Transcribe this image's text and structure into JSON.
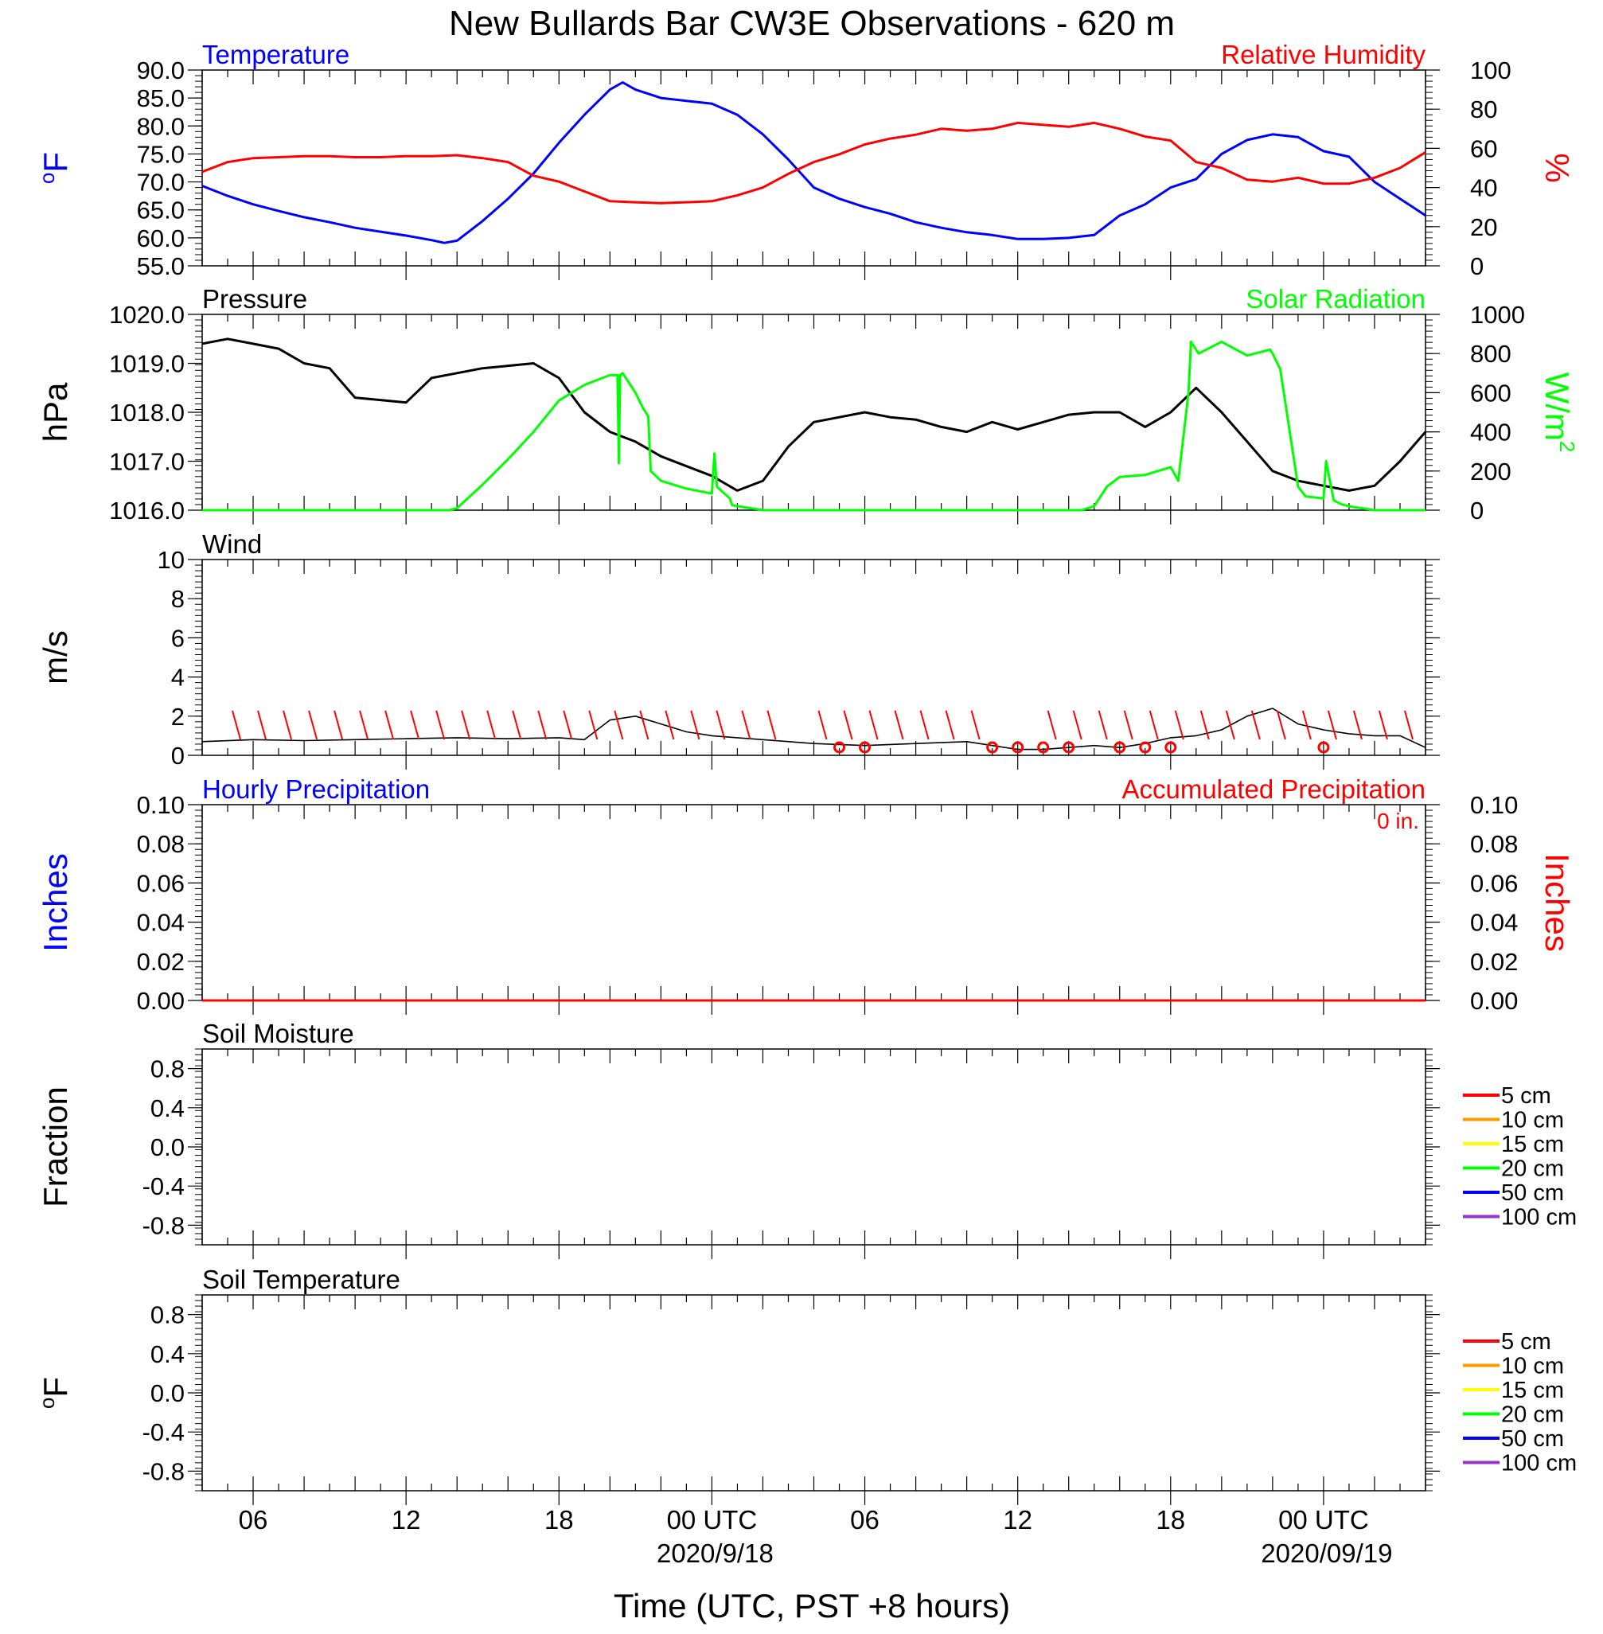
{
  "title": "New Bullards Bar CW3E Observations - 620 m",
  "x_axis": {
    "label": "Time (UTC, PST +8 hours)",
    "start_hour": 4,
    "end_hour": 52,
    "tick_labels": [
      {
        "hour": 6,
        "text": "06",
        "date": ""
      },
      {
        "hour": 12,
        "text": "12",
        "date": ""
      },
      {
        "hour": 18,
        "text": "18",
        "date": ""
      },
      {
        "hour": 24,
        "text": "00 UTC",
        "date": "2020/9/18"
      },
      {
        "hour": 30,
        "text": "06",
        "date": ""
      },
      {
        "hour": 36,
        "text": "12",
        "date": ""
      },
      {
        "hour": 42,
        "text": "18",
        "date": ""
      },
      {
        "hour": 48,
        "text": "00 UTC",
        "date": "2020/09/19"
      }
    ]
  },
  "colors": {
    "blue": "#0000ff",
    "red": "#ff0000",
    "green": "#00ff00",
    "black": "#000000",
    "orange": "#ff9900",
    "yellow": "#ffff00",
    "purple": "#9933cc"
  },
  "legend_soil": [
    {
      "label": "5 cm",
      "color": "#ff0000"
    },
    {
      "label": "10 cm",
      "color": "#ff9900"
    },
    {
      "label": "15 cm",
      "color": "#ffff00"
    },
    {
      "label": "20 cm",
      "color": "#00ff00"
    },
    {
      "label": "50 cm",
      "color": "#0000ff"
    },
    {
      "label": "100 cm",
      "color": "#9933cc"
    }
  ],
  "chart_data": [
    {
      "type": "line",
      "panel": "temperature_humidity",
      "left_title": "Temperature",
      "right_title": "Relative Humidity",
      "ylabel_left_sup": "o",
      "ylabel_left": "F",
      "ylabel_right": "%",
      "ylim_left": [
        55,
        90
      ],
      "yticks_left": [
        "55.0",
        "60.0",
        "65.0",
        "70.0",
        "75.0",
        "80.0",
        "85.0",
        "90.0"
      ],
      "ylim_right": [
        0,
        100
      ],
      "yticks_right": [
        "0",
        "20",
        "40",
        "60",
        "80",
        "100"
      ],
      "series": [
        {
          "name": "Temperature",
          "axis": "left",
          "color": "#0000ff",
          "x": [
            4,
            5,
            6,
            7,
            8,
            9,
            10,
            11,
            12,
            13,
            13.5,
            14,
            15,
            16,
            17,
            18,
            19,
            20,
            20.5,
            21,
            22,
            23,
            24,
            25,
            26,
            27,
            28,
            29,
            30,
            31,
            32,
            33,
            34,
            35,
            36,
            37,
            38,
            39,
            40,
            41,
            42,
            43,
            44,
            45,
            46,
            47,
            48,
            49,
            50,
            51,
            52
          ],
          "y": [
            69.3,
            67.5,
            66.0,
            64.8,
            63.7,
            62.8,
            61.8,
            61.1,
            60.4,
            59.6,
            59.1,
            59.5,
            63.0,
            67.0,
            71.5,
            77.0,
            82.0,
            86.5,
            87.8,
            86.5,
            85.0,
            84.5,
            84.0,
            82.0,
            78.5,
            74.0,
            69.0,
            67.0,
            65.5,
            64.3,
            62.8,
            61.8,
            61.0,
            60.5,
            59.8,
            59.8,
            60.0,
            60.5,
            64.0,
            66.0,
            69.0,
            70.5,
            75.0,
            77.5,
            78.5,
            78.0,
            75.5,
            74.5,
            70.0,
            67.0,
            64.0
          ]
        },
        {
          "name": "Relative Humidity",
          "axis": "right",
          "color": "#ff0000",
          "x": [
            4,
            5,
            6,
            7,
            8,
            9,
            10,
            11,
            12,
            13,
            14,
            15,
            16,
            17,
            18,
            19,
            20,
            21,
            22,
            23,
            24,
            25,
            26,
            27,
            28,
            29,
            30,
            31,
            32,
            33,
            34,
            35,
            36,
            37,
            38,
            39,
            40,
            41,
            42,
            43,
            44,
            45,
            46,
            47,
            48,
            49,
            50,
            51,
            52
          ],
          "y": [
            48,
            53,
            55,
            55.5,
            56,
            56,
            55.5,
            55.5,
            56,
            56,
            56.5,
            55,
            53,
            46,
            43,
            38,
            33,
            32.5,
            32,
            32.5,
            33,
            36,
            40,
            47,
            53,
            57,
            62,
            65,
            67,
            70,
            69,
            70,
            73,
            72,
            71,
            73,
            70,
            66,
            64,
            53,
            50,
            44,
            43,
            45,
            42,
            42,
            45,
            50,
            58
          ]
        }
      ]
    },
    {
      "type": "line",
      "panel": "pressure_solar",
      "left_title": "Pressure",
      "right_title": "Solar Radiation",
      "ylabel_left": "hPa",
      "ylabel_right": "W/m",
      "ylabel_right_sup": "2",
      "ylim_left": [
        1016,
        1020
      ],
      "yticks_left": [
        "1016.0",
        "1017.0",
        "1018.0",
        "1019.0",
        "1020.0"
      ],
      "ylim_right": [
        0,
        1000
      ],
      "yticks_right": [
        "0",
        "200",
        "400",
        "600",
        "800",
        "1000"
      ],
      "series": [
        {
          "name": "Pressure",
          "axis": "left",
          "color": "#000000",
          "x": [
            4,
            5,
            6,
            7,
            8,
            9,
            10,
            11,
            12,
            13,
            14,
            15,
            16,
            17,
            18,
            19,
            20,
            21,
            22,
            23,
            24,
            25,
            26,
            27,
            28,
            29,
            30,
            31,
            32,
            33,
            34,
            35,
            36,
            37,
            38,
            39,
            40,
            41,
            42,
            43,
            44,
            45,
            46,
            47,
            48,
            49,
            50,
            51,
            52
          ],
          "y": [
            1019.4,
            1019.5,
            1019.4,
            1019.3,
            1019.0,
            1018.9,
            1018.3,
            1018.25,
            1018.2,
            1018.7,
            1018.8,
            1018.9,
            1018.95,
            1019.0,
            1018.7,
            1018.0,
            1017.6,
            1017.4,
            1017.1,
            1016.9,
            1016.7,
            1016.4,
            1016.6,
            1017.3,
            1017.8,
            1017.9,
            1018.0,
            1017.9,
            1017.85,
            1017.7,
            1017.6,
            1017.8,
            1017.65,
            1017.8,
            1017.95,
            1018.0,
            1018.0,
            1017.7,
            1018.0,
            1018.5,
            1018.0,
            1017.4,
            1016.8,
            1016.6,
            1016.5,
            1016.4,
            1016.5,
            1017.0,
            1017.6
          ]
        },
        {
          "name": "Solar Radiation",
          "axis": "right",
          "color": "#00ff00",
          "x": [
            4,
            13.7,
            14,
            15,
            16,
            17,
            18,
            19,
            20,
            20.3,
            20.35,
            20.4,
            20.5,
            21,
            21.3,
            21.5,
            21.6,
            22,
            23,
            24,
            24.1,
            24.2,
            24.7,
            24.8,
            26,
            27,
            30,
            36,
            38.5,
            39,
            39.5,
            40,
            41,
            42,
            42.3,
            42.7,
            42.8,
            43.1,
            44,
            45,
            45.9,
            46,
            46.3,
            47,
            47.3,
            48,
            48.1,
            48.4,
            48.7,
            49,
            50,
            51,
            52
          ],
          "y": [
            0,
            0,
            10,
            130,
            260,
            400,
            560,
            640,
            690,
            690,
            240,
            690,
            700,
            600,
            520,
            480,
            200,
            150,
            110,
            85,
            290,
            120,
            60,
            25,
            0,
            0,
            0,
            0,
            0,
            20,
            120,
            170,
            180,
            220,
            150,
            600,
            860,
            800,
            860,
            790,
            820,
            800,
            720,
            120,
            70,
            60,
            250,
            50,
            30,
            20,
            0,
            0,
            0
          ]
        }
      ]
    },
    {
      "type": "line",
      "panel": "wind",
      "left_title": "Wind",
      "ylabel_left": "m/s",
      "ylim_left": [
        0,
        10
      ],
      "yticks_left": [
        "0",
        "2",
        "4",
        "6",
        "8",
        "10"
      ],
      "series": [
        {
          "name": "Wind",
          "axis": "left",
          "color": "#000000",
          "x": [
            4,
            6,
            8,
            10,
            12,
            14,
            16,
            18,
            19,
            20,
            21,
            22,
            23,
            24,
            25,
            26,
            28,
            30,
            32,
            34,
            35,
            36,
            37,
            38,
            39,
            40,
            41,
            42,
            43,
            44,
            45,
            46,
            47,
            48,
            49,
            50,
            51,
            52
          ],
          "y": [
            0.7,
            0.8,
            0.75,
            0.8,
            0.85,
            0.9,
            0.85,
            0.9,
            0.8,
            1.8,
            2.0,
            1.6,
            1.2,
            1.0,
            0.9,
            0.8,
            0.6,
            0.5,
            0.6,
            0.7,
            0.5,
            0.3,
            0.3,
            0.4,
            0.5,
            0.4,
            0.6,
            0.9,
            1.0,
            1.3,
            2.0,
            2.4,
            1.6,
            1.3,
            1.1,
            1.0,
            1.0,
            0.4
          ]
        }
      ],
      "barbs_hours": [
        5.5,
        6.5,
        7.5,
        8.5,
        9.5,
        10.5,
        11.5,
        12.5,
        13.5,
        14.5,
        15.5,
        16.5,
        17.5,
        18.5,
        19.5,
        20.5,
        21.5,
        22.5,
        23.5,
        24.5,
        25.5,
        26.5,
        28.5,
        29.5,
        30.5,
        31.5,
        32.5,
        33.5,
        34.5,
        37.5,
        38.5,
        39.5,
        40.5,
        41.5,
        42.5,
        43.5,
        44.5,
        45.5,
        46.5,
        47.5,
        48.5,
        49.5,
        50.5,
        51.5
      ],
      "calm_hours": [
        29,
        30,
        35,
        36,
        37,
        38,
        40,
        41,
        42,
        48
      ]
    },
    {
      "type": "line",
      "panel": "precipitation",
      "left_title": "Hourly Precipitation",
      "right_title": "Accumulated Precipitation",
      "total_label": "0 in.",
      "ylabel_left": "Inches",
      "ylabel_right": "Inches",
      "ylim_left": [
        0,
        0.1
      ],
      "yticks_left": [
        "0.00",
        "0.02",
        "0.04",
        "0.06",
        "0.08",
        "0.10"
      ],
      "ylim_right": [
        0,
        0.1
      ],
      "yticks_right": [
        "0.00",
        "0.02",
        "0.04",
        "0.06",
        "0.08",
        "0.10"
      ],
      "series": [
        {
          "name": "Accumulated Precipitation",
          "axis": "right",
          "color": "#ff0000",
          "x": [
            4,
            52
          ],
          "y": [
            0,
            0
          ]
        }
      ]
    },
    {
      "type": "line",
      "panel": "soil_moisture",
      "left_title": "Soil Moisture",
      "ylabel_left": "Fraction",
      "ylim_left": [
        -1,
        1
      ],
      "yticks_left": [
        "-0.8",
        "-0.4",
        "0.0",
        "0.4",
        "0.8"
      ],
      "series": []
    },
    {
      "type": "line",
      "panel": "soil_temperature",
      "left_title": "Soil Temperature",
      "ylabel_left_sup": "o",
      "ylabel_left": "F",
      "ylim_left": [
        -1,
        1
      ],
      "yticks_left": [
        "-0.8",
        "-0.4",
        "0.0",
        "0.4",
        "0.8"
      ],
      "series": []
    }
  ]
}
